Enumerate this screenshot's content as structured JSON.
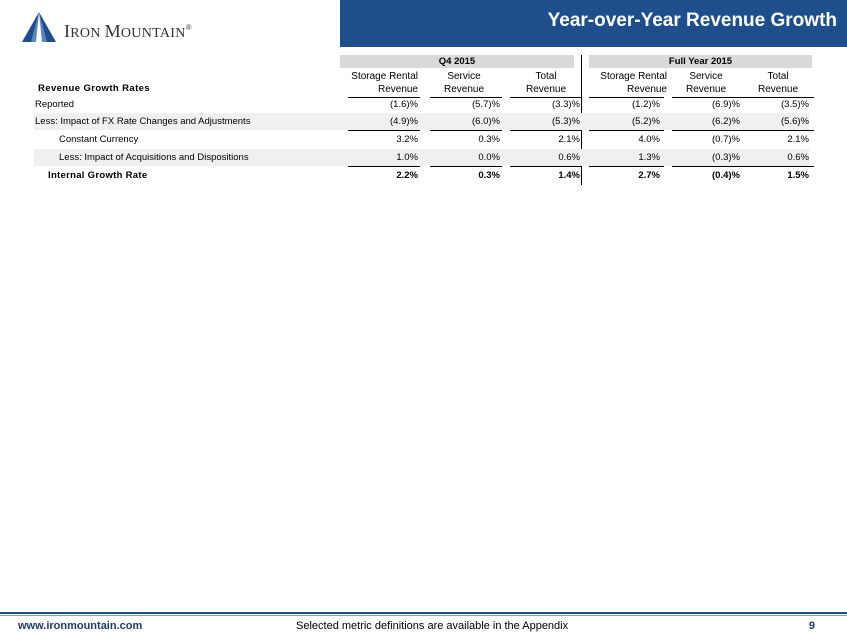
{
  "header": {
    "title": "Year-over-Year Revenue Growth",
    "logo_text_first": "I",
    "logo_text_rest_1": "RON ",
    "logo_text_m": "M",
    "logo_text_rest_2": "OUNTAIN",
    "logo_reg": "®",
    "accent_color": "#1f4e8c"
  },
  "table": {
    "groups": [
      "Q4 2015",
      "Full Year 2015"
    ],
    "heading": "Revenue Growth Rates",
    "columns": [
      {
        "line1": "Storage Rental",
        "line2": "Revenue"
      },
      {
        "line1": "Service",
        "line2": "Revenue"
      },
      {
        "line1": "Total",
        "line2": "Revenue"
      },
      {
        "line1": "Storage Rental",
        "line2": "Revenue"
      },
      {
        "line1": "Service",
        "line2": "Revenue"
      },
      {
        "line1": "Total",
        "line2": "Revenue"
      }
    ],
    "rows": [
      {
        "label": "Reported",
        "values": [
          "(1.6)%",
          "(5.7)%",
          "(3.3)%",
          "(1.2)%",
          "(6.9)%",
          "(3.5)%"
        ]
      },
      {
        "label": "Less: Impact of FX Rate Changes and Adjustments",
        "values": [
          "(4.9)%",
          "(6.0)%",
          "(5.3)%",
          "(5.2)%",
          "(6.2)%",
          "(5.6)%"
        ]
      },
      {
        "label": "Constant Currency",
        "values": [
          "3.2%",
          "0.3%",
          "2.1%",
          "4.0%",
          "(0.7)%",
          "2.1%"
        ]
      },
      {
        "label": "Less: Impact of Acquisitions and Dispositions",
        "values": [
          "1.0%",
          "0.0%",
          "0.6%",
          "1.3%",
          "(0.3)%",
          "0.6%"
        ]
      },
      {
        "label": "Internal Growth Rate",
        "values": [
          "2.2%",
          "0.3%",
          "1.4%",
          "2.7%",
          "(0.4)%",
          "1.5%"
        ]
      }
    ]
  },
  "footer": {
    "url": "www.ironmountain.com",
    "note": "Selected metric definitions are available in the Appendix",
    "page": "9"
  }
}
